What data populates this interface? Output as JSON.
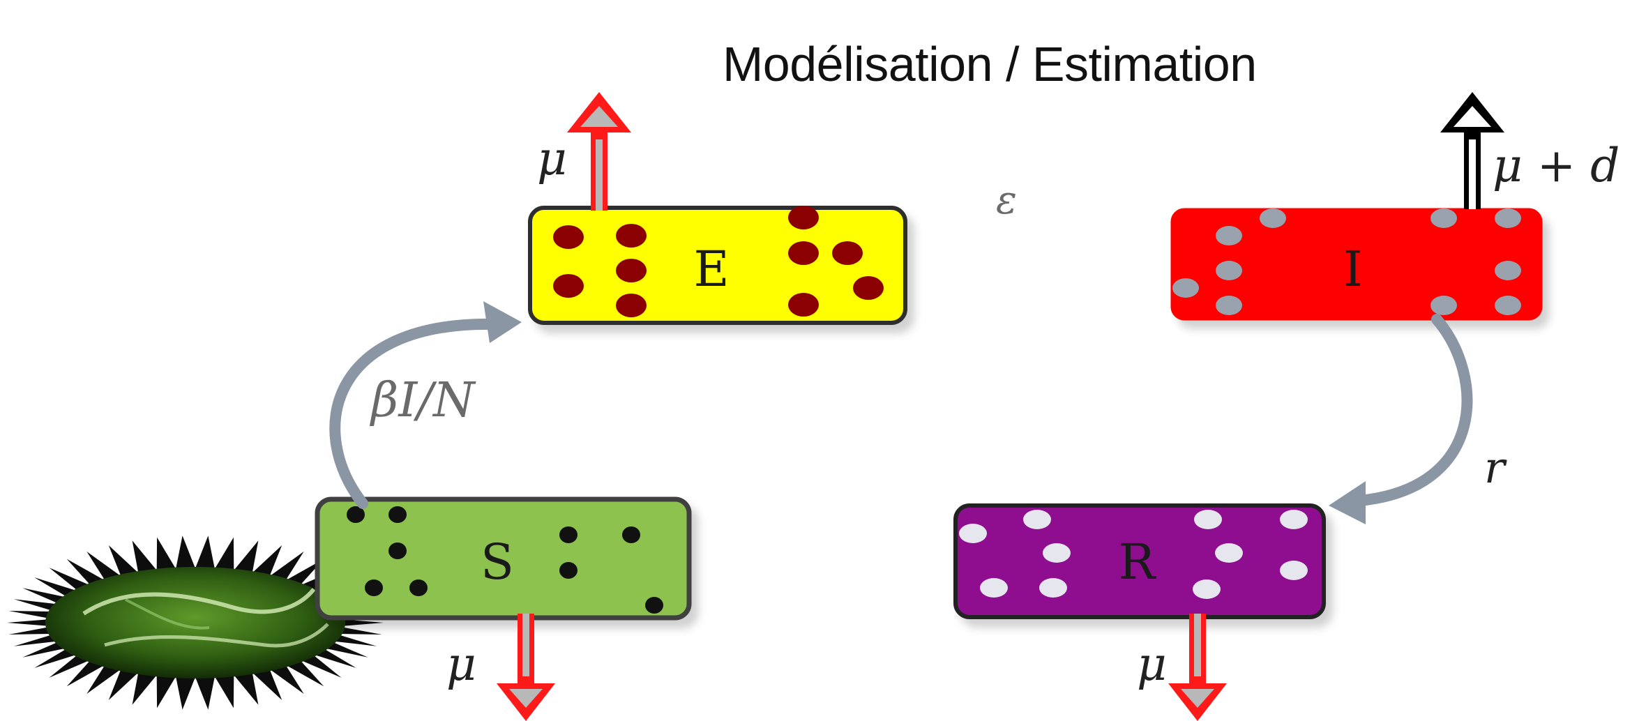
{
  "title": "Modélisation / Estimation",
  "compartments": {
    "S": {
      "label": "S",
      "color": "#8cc24e",
      "particle_color": "#111111"
    },
    "E": {
      "label": "E",
      "color": "#ffff00",
      "particle_color": "#8b0000"
    },
    "I": {
      "label": "I",
      "color": "#ff0000",
      "particle_color": "#9aa3ad"
    },
    "R": {
      "label": "R",
      "color": "#8f0f8f",
      "particle_color": "#e6e6ee"
    }
  },
  "rates": {
    "infection": "βI/N",
    "incubation": "ε",
    "recovery": "r",
    "death_S": "μ",
    "death_E": "μ",
    "death_I": "μ + d",
    "death_R": "μ"
  },
  "icons": {
    "virus": "virus-icon"
  },
  "colors": {
    "arrow_red": "#ff1a1a",
    "arrow_black": "#000000",
    "curve": "#8a96a3"
  }
}
